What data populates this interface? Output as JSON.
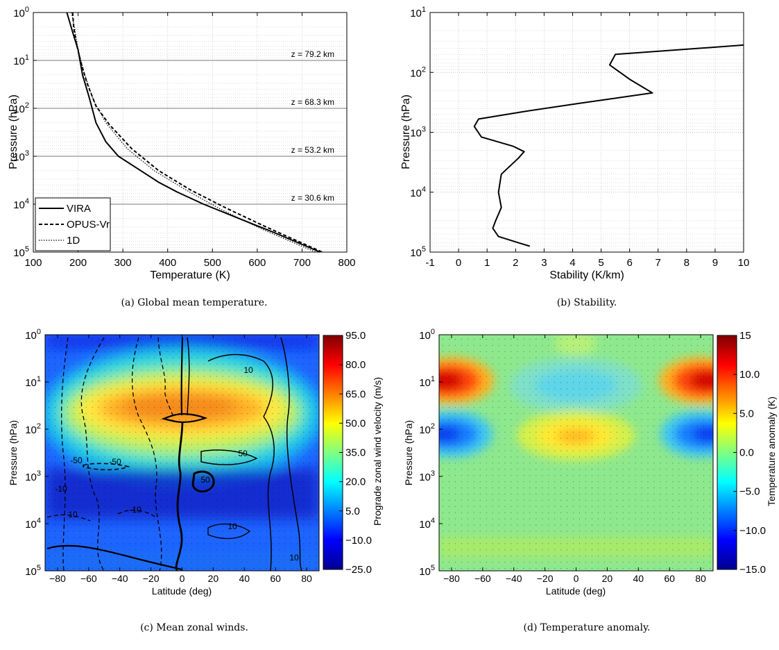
{
  "chart_data": [
    {
      "panel": "a",
      "type": "line",
      "caption": "(a)  Global mean temperature.",
      "xlabel": "Temperature (K)",
      "ylabel": "Pressure (hPa)",
      "xlim": [
        100,
        800
      ],
      "ylim": [
        1,
        100000
      ],
      "yscale": "log",
      "y_reversed": true,
      "grid": true,
      "legend": "bottom-left",
      "xticks": [
        "100",
        "200",
        "300",
        "400",
        "500",
        "600",
        "700",
        "800"
      ],
      "yticks": [
        {
          "base": "10",
          "exp": "0"
        },
        {
          "base": "10",
          "exp": "1"
        },
        {
          "base": "10",
          "exp": "2"
        },
        {
          "base": "10",
          "exp": "3"
        },
        {
          "base": "10",
          "exp": "4"
        },
        {
          "base": "10",
          "exp": "5"
        }
      ],
      "annotations": [
        {
          "text": "z = 79.2 km",
          "pressure": 10
        },
        {
          "text": "z = 68.3 km",
          "pressure": 100
        },
        {
          "text": "z = 53.2 km",
          "pressure": 1000
        },
        {
          "text": "z = 30.6 km",
          "pressure": 10000
        }
      ],
      "series": [
        {
          "name": "VIRA",
          "style": "solid",
          "x": [
            175,
            190,
            200,
            210,
            225,
            240,
            262,
            290,
            340,
            380,
            420,
            480,
            560,
            640,
            740
          ],
          "y": [
            1,
            3,
            6,
            20,
            60,
            200,
            500,
            1000,
            2000,
            3500,
            5500,
            10000,
            20000,
            40000,
            100000
          ]
        },
        {
          "name": "OPUS-Vr",
          "style": "dashed",
          "x": [
            188,
            190,
            195,
            205,
            220,
            240,
            270,
            320,
            380,
            450,
            530,
            620,
            745
          ],
          "y": [
            1,
            2,
            4,
            10,
            30,
            90,
            220,
            700,
            2000,
            5000,
            12000,
            30000,
            100000
          ]
        },
        {
          "name": "1D",
          "style": "dotted",
          "x": [
            185,
            192,
            200,
            215,
            235,
            262,
            310,
            370,
            440,
            520,
            610,
            730
          ],
          "y": [
            1,
            2,
            6,
            20,
            70,
            200,
            700,
            2000,
            5000,
            13000,
            33000,
            100000
          ]
        }
      ]
    },
    {
      "panel": "b",
      "type": "line",
      "caption": "(b)  Stability.",
      "xlabel": "Stability (K/km)",
      "ylabel": "Pressure (hPa)",
      "xlim": [
        -1,
        10
      ],
      "ylim": [
        10,
        100000
      ],
      "yscale": "log",
      "y_reversed": true,
      "grid": true,
      "xticks": [
        "-1",
        "0",
        "1",
        "2",
        "3",
        "4",
        "5",
        "6",
        "7",
        "8",
        "9",
        "10"
      ],
      "yticks": [
        {
          "base": "10",
          "exp": "1"
        },
        {
          "base": "10",
          "exp": "2"
        },
        {
          "base": "10",
          "exp": "3"
        },
        {
          "base": "10",
          "exp": "4"
        },
        {
          "base": "10",
          "exp": "5"
        }
      ],
      "series": [
        {
          "name": "",
          "style": "solid",
          "x": [
            10,
            5.5,
            5.3,
            6.0,
            6.8,
            4.2,
            2.3,
            0.7,
            0.55,
            0.8,
            1.9,
            2.3,
            2.1,
            1.5,
            1.4,
            1.5,
            1.3,
            1.2,
            1.4,
            2.1,
            2.5
          ],
          "y": [
            35,
            50,
            75,
            130,
            220,
            330,
            450,
            600,
            800,
            1200,
            1700,
            2100,
            2700,
            5000,
            10000,
            18000,
            30000,
            40000,
            55000,
            70000,
            80000
          ]
        }
      ]
    },
    {
      "panel": "c",
      "type": "heatmap",
      "caption": "(c)  Mean zonal winds.",
      "xlabel": "Latitude (deg)",
      "ylabel": "Pressure (hPa)",
      "xlim": [
        -88,
        88
      ],
      "ylim": [
        1,
        100000
      ],
      "yscale": "log",
      "y_reversed": true,
      "xticks": [
        "-80",
        "-60",
        "-40",
        "-20",
        "0",
        "20",
        "40",
        "60",
        "80"
      ],
      "yticks": [
        {
          "base": "10",
          "exp": "0"
        },
        {
          "base": "10",
          "exp": "1"
        },
        {
          "base": "10",
          "exp": "2"
        },
        {
          "base": "10",
          "exp": "3"
        },
        {
          "base": "10",
          "exp": "4"
        },
        {
          "base": "10",
          "exp": "5"
        }
      ],
      "colorbar": {
        "label": "Prograde zonal wind velocity (m/s)",
        "range": [
          -25,
          95
        ],
        "ticks": [
          "95.0",
          "80.0",
          "65.0",
          "50.0",
          "35.0",
          "20.0",
          "5.0",
          "−10.0",
          "−25.0"
        ]
      },
      "contour_labels": [
        "10",
        "-50",
        "-50",
        "-10",
        "50",
        "10",
        "50",
        "-10",
        "10",
        "10"
      ],
      "description_fields": {
        "max_speed_region": {
          "lat_range": [
            -40,
            40
          ],
          "pressure_range": [
            20,
            100
          ],
          "value": 70
        }
      }
    },
    {
      "panel": "d",
      "type": "heatmap",
      "caption": "(d)  Temperature anomaly.",
      "xlabel": "Latitude (deg)",
      "ylabel": "Pressure (hPa)",
      "xlim": [
        -88,
        88
      ],
      "ylim": [
        1,
        100000
      ],
      "yscale": "log",
      "y_reversed": true,
      "xticks": [
        "-80",
        "-60",
        "-40",
        "-20",
        "0",
        "20",
        "40",
        "60",
        "80"
      ],
      "yticks": [
        {
          "base": "10",
          "exp": "0"
        },
        {
          "base": "10",
          "exp": "1"
        },
        {
          "base": "10",
          "exp": "2"
        },
        {
          "base": "10",
          "exp": "3"
        },
        {
          "base": "10",
          "exp": "4"
        },
        {
          "base": "10",
          "exp": "5"
        }
      ],
      "colorbar": {
        "label": "Temperature anomaly (K)",
        "range": [
          -15,
          15
        ],
        "ticks": [
          "15",
          "10.0",
          "5.0",
          "0.0",
          "−5.0",
          "−10.0",
          "−15.0"
        ]
      }
    }
  ]
}
